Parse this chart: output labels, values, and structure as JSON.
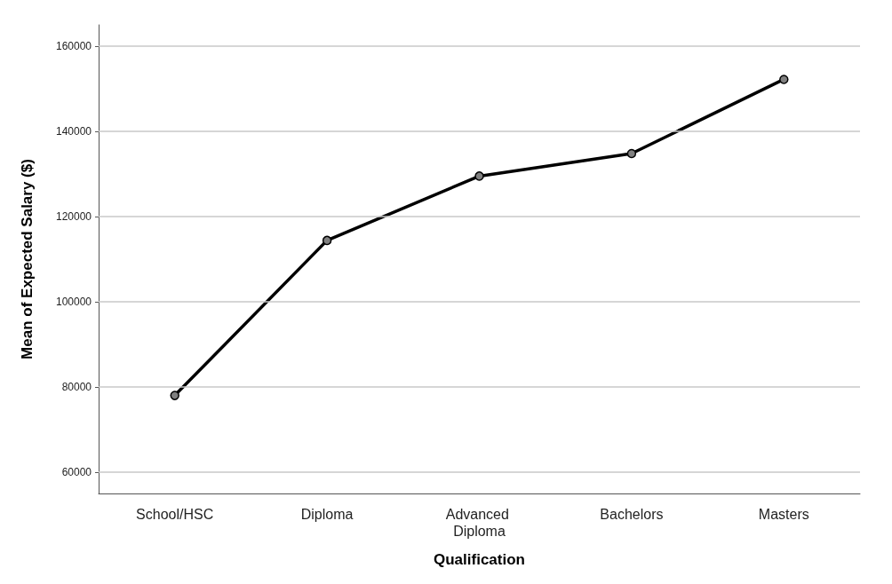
{
  "chart_data": {
    "type": "line",
    "xlabel": "Qualification",
    "ylabel": "Mean of Expected Salary ($)",
    "categories": [
      "School/HSC",
      "Diploma",
      "Advanced Diploma",
      "Bachelors",
      "Masters"
    ],
    "series": [
      {
        "color": "#000000",
        "values": [
          78000,
          114400,
          129500,
          134800,
          152200
        ]
      }
    ],
    "ylim": [
      55000,
      165000
    ],
    "yticks": [
      60000,
      80000,
      100000,
      120000,
      140000,
      160000
    ],
    "grid": "y",
    "marker": "circle",
    "line_style": "solid"
  }
}
